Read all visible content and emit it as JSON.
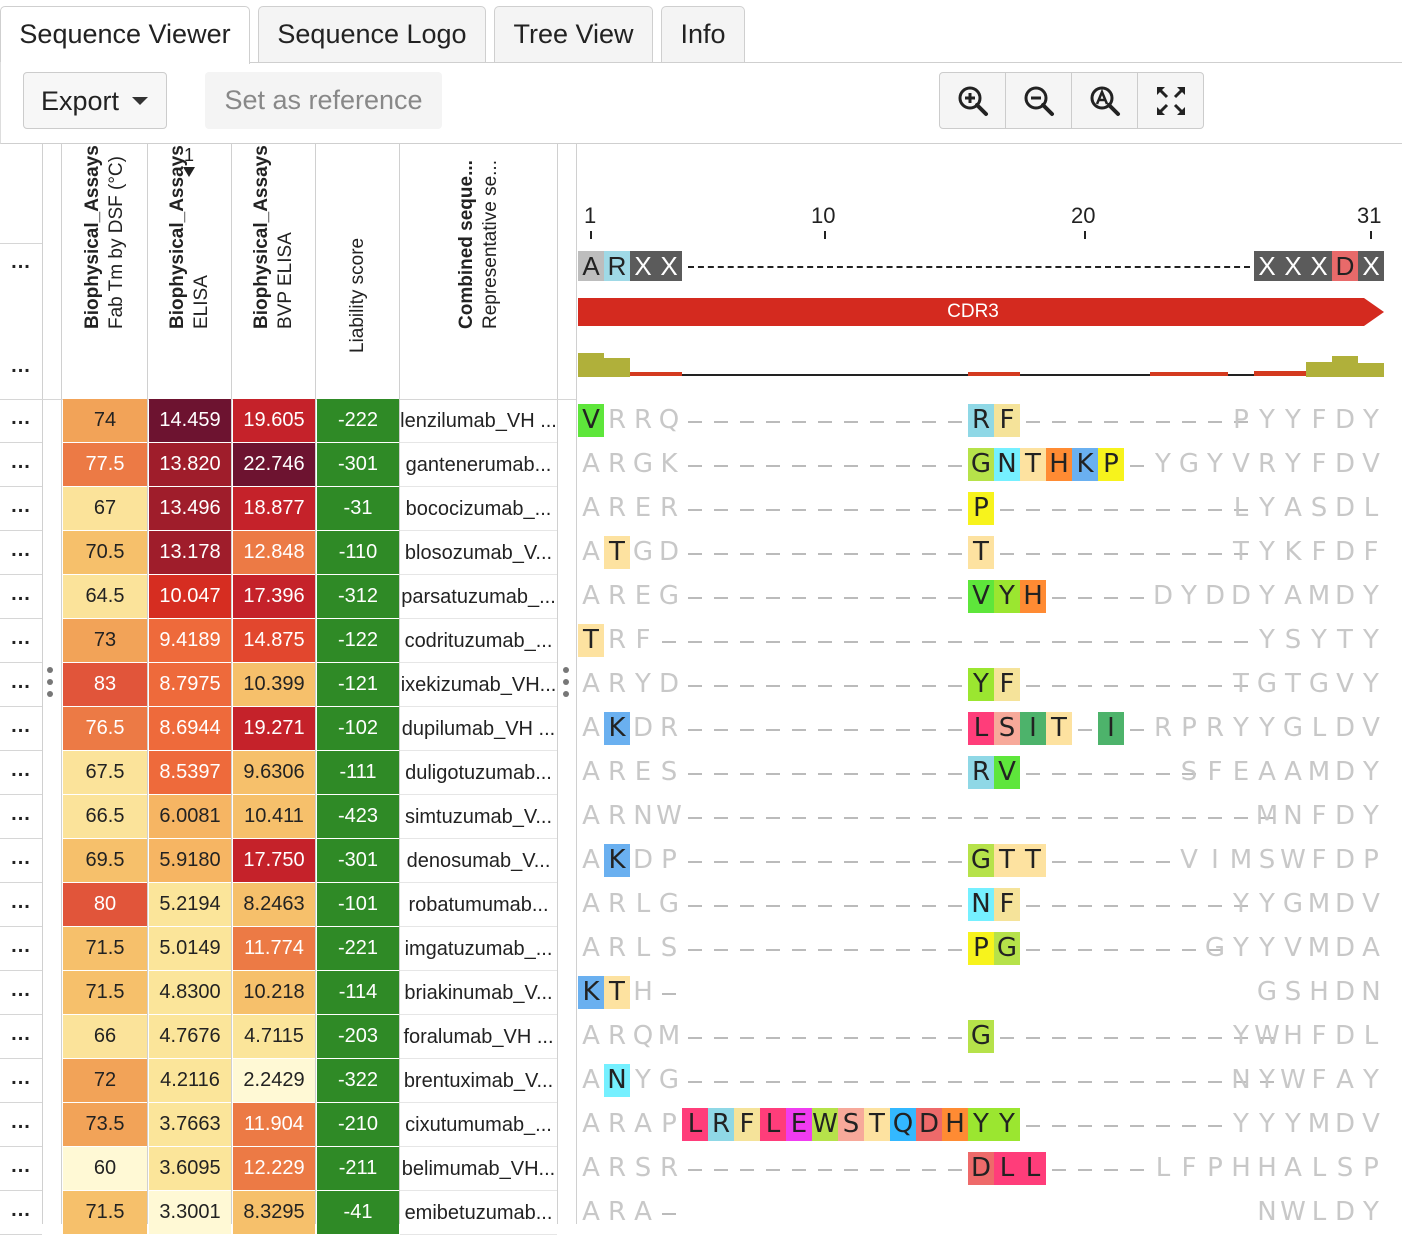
{
  "tabs": [
    "Sequence Viewer",
    "Sequence Logo",
    "Tree View",
    "Info"
  ],
  "toolbar": {
    "export_label": "Export",
    "reference_label": "Set as reference"
  },
  "zoom_icons": [
    "zoom-in-icon",
    "zoom-out-icon",
    "zoom-fit-icon",
    "fullscreen-icon"
  ],
  "columns": {
    "c1": {
      "title": "Biophysical_Assays",
      "subtitle": "Fab Tm by DSF (°C)"
    },
    "c2": {
      "title": "Biophysical_Assays",
      "subtitle": "ELISA",
      "sort_index": "1"
    },
    "c3": {
      "title": "Biophysical_Assays",
      "subtitle": "BVP ELISA"
    },
    "c4": {
      "title": "",
      "subtitle": "Liability score"
    },
    "c5": {
      "title": "Combined seque...",
      "subtitle": "Representative se..."
    }
  },
  "menu_dots": "...",
  "ruler": [
    "1",
    "10",
    "20",
    "31"
  ],
  "consensus": [
    "A",
    "R",
    "X",
    "X",
    "X",
    "X",
    "X",
    "D",
    "X"
  ],
  "annotation": {
    "label": "CDR3",
    "color": "#d42a1f"
  },
  "rows": [
    {
      "tm": "74",
      "elisa": "14.459",
      "bvp": "19.605",
      "liab": "-222",
      "name": "lenzilumab_VH ...",
      "seq": "VRRQ-----------RF---------PYYFDY"
    },
    {
      "tm": "77.5",
      "elisa": "13.820",
      "bvp": "22.746",
      "liab": "-301",
      "name": "gantenerumab...",
      "seq": "ARGK-----------GNTHKP-YGYVRYFDV"
    },
    {
      "tm": "67",
      "elisa": "13.496",
      "bvp": "18.877",
      "liab": "-31",
      "name": "bococizumab_...",
      "seq": "ARER-----------P----------LYASDL"
    },
    {
      "tm": "70.5",
      "elisa": "13.178",
      "bvp": "12.848",
      "liab": "-110",
      "name": "blosozumab_V...",
      "seq": "ATGD-----------T----------TYKFDF"
    },
    {
      "tm": "64.5",
      "elisa": "10.047",
      "bvp": "17.396",
      "liab": "-312",
      "name": "parsatuzumab_...",
      "seq": "AREG-----------VYH----DYDDYAMDY"
    },
    {
      "tm": "73",
      "elisa": "9.4189",
      "bvp": "14.875",
      "liab": "-122",
      "name": "codrituzumab_...",
      "seq": "TRF-----------------------YSYTY"
    },
    {
      "tm": "83",
      "elisa": "8.7975",
      "bvp": "10.399",
      "liab": "-121",
      "name": "ixekizumab_VH...",
      "seq": "ARYD-----------YF---------TGTGVY"
    },
    {
      "tm": "76.5",
      "elisa": "8.6944",
      "bvp": "19.271",
      "liab": "-102",
      "name": "dupilumab_VH ...",
      "seq": "AKDR-----------LSIT-I-RPRYYGLDV"
    },
    {
      "tm": "67.5",
      "elisa": "8.5397",
      "bvp": "9.6306",
      "liab": "-111",
      "name": "duligotuzumab...",
      "seq": "ARES-----------RV-------SFEAAMDY"
    },
    {
      "tm": "66.5",
      "elisa": "6.0081",
      "bvp": "10.411",
      "liab": "-423",
      "name": "simtuzumab_V...",
      "seq": "ARNW-----------------------MNFDY"
    },
    {
      "tm": "69.5",
      "elisa": "5.9180",
      "bvp": "17.750",
      "liab": "-301",
      "name": "denosumab_V...",
      "seq": "AKDP-----------GTT-----VIMSWFDP"
    },
    {
      "tm": "80",
      "elisa": "5.2194",
      "bvp": "8.2463",
      "liab": "-101",
      "name": "robatumumab...",
      "seq": "ARLG-----------NF---------YYGMDV"
    },
    {
      "tm": "71.5",
      "elisa": "5.0149",
      "bvp": "11.774",
      "liab": "-221",
      "name": "imgatuzumab_...",
      "seq": "ARLS-----------PG--------GYYVMDA"
    },
    {
      "tm": "71.5",
      "elisa": "4.8300",
      "bvp": "10.218",
      "liab": "-114",
      "name": "briakinumab_V...",
      "seq": "KTH-                      GSHDN"
    },
    {
      "tm": "66",
      "elisa": "4.7676",
      "bvp": "4.7115",
      "liab": "-203",
      "name": "foralumab_VH ...",
      "seq": "ARQM-----------G-----------YWHFDL"
    },
    {
      "tm": "72",
      "elisa": "4.2116",
      "bvp": "2.2429",
      "liab": "-322",
      "name": "brentuximab_V...",
      "seq": "ANYG-----------------------NYWFAY"
    },
    {
      "tm": "73.5",
      "elisa": "3.7663",
      "bvp": "11.904",
      "liab": "-210",
      "name": "cixutumumab_...",
      "seq": "ARAPLRFLEWSTQDHYY--------YYYMDV"
    },
    {
      "tm": "60",
      "elisa": "3.6095",
      "bvp": "12.229",
      "liab": "-211",
      "name": "belimumab_VH...",
      "seq": "ARSR-----------DLL----LFPHHALSP"
    },
    {
      "tm": "71.5",
      "elisa": "3.3001",
      "bvp": "8.3295",
      "liab": "-41",
      "name": "emibetuzumab...",
      "seq": "ARA-                      NWLDY"
    }
  ]
}
